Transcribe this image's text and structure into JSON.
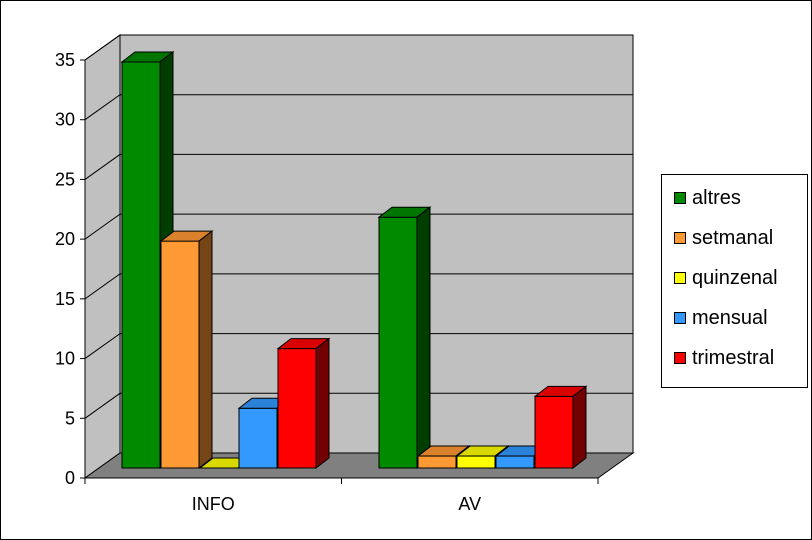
{
  "chart_data": {
    "type": "bar",
    "style": "3d-clustered-column",
    "categories": [
      "INFO",
      "AV"
    ],
    "series": [
      {
        "name": "altres",
        "values": [
          34,
          21
        ],
        "color": "#008A00"
      },
      {
        "name": "setmanal",
        "values": [
          19,
          1
        ],
        "color": "#FF9933"
      },
      {
        "name": "quinzenal",
        "values": [
          0,
          1
        ],
        "color": "#FFFF00"
      },
      {
        "name": "mensual",
        "values": [
          5,
          1
        ],
        "color": "#3399FF"
      },
      {
        "name": "trimestral",
        "values": [
          10,
          6
        ],
        "color": "#FF0000"
      }
    ],
    "ylim": [
      0,
      35
    ],
    "yticks": [
      "0",
      "5",
      "10",
      "15",
      "20",
      "25",
      "30",
      "35"
    ],
    "grid": true,
    "legend_position": "right",
    "wall_color": "#C0C0C0",
    "floor_color": "#808080"
  }
}
